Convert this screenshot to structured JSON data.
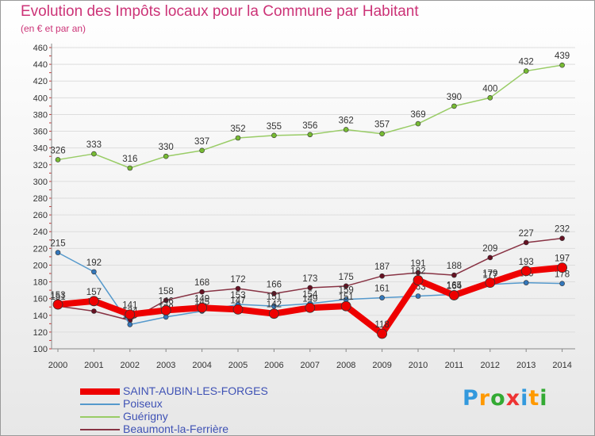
{
  "chart_data": {
    "type": "line",
    "title": "Evolution des Impôts locaux pour la Commune par Habitant",
    "subtitle": "(en € et par an)",
    "xlabel": "",
    "ylabel": "",
    "ylim": [
      100,
      460
    ],
    "ytick_step": 20,
    "categories": [
      "2000",
      "2001",
      "2002",
      "2003",
      "2004",
      "2005",
      "2006",
      "2007",
      "2008",
      "2009",
      "2010",
      "2011",
      "2012",
      "2013",
      "2014"
    ],
    "series": [
      {
        "name": "Guérigny",
        "color": "#99cc66",
        "point_color": "#77bb33",
        "line_width": 1.5,
        "values": [
          326,
          333,
          316,
          330,
          337,
          352,
          355,
          356,
          362,
          357,
          369,
          390,
          400,
          432,
          439
        ],
        "show_labels": true
      },
      {
        "name": "Beaumont-la-Ferrière",
        "color": "#883344",
        "point_color": "#661122",
        "line_width": 1.5,
        "values": [
          151,
          145,
          134,
          158,
          168,
          172,
          166,
          173,
          175,
          187,
          191,
          188,
          209,
          227,
          232
        ],
        "show_labels": true
      },
      {
        "name": "Poiseux",
        "color": "#5599cc",
        "point_color": "#3377bb",
        "line_width": 1.5,
        "values": [
          215,
          192,
          129,
          138,
          145,
          153,
          151,
          154,
          159,
          161,
          163,
          165,
          177,
          179,
          178
        ],
        "show_labels": true
      },
      {
        "name": "SAINT-AUBIN-LES-FORGES",
        "color": "#ee0000",
        "point_color": "#ee0000",
        "line_width": 8,
        "values": [
          153,
          157,
          141,
          146,
          149,
          147,
          142,
          149,
          151,
          118,
          182,
          164,
          179,
          193,
          197
        ],
        "show_labels": true
      }
    ],
    "legend": [
      {
        "name": "SAINT-AUBIN-LES-FORGES",
        "color": "#ee0000",
        "thickness": 8
      },
      {
        "name": "Poiseux",
        "color": "#5599cc",
        "thickness": 2
      },
      {
        "name": "Guérigny",
        "color": "#99cc66",
        "thickness": 2
      },
      {
        "name": "Beaumont-la-Ferrière",
        "color": "#883344",
        "thickness": 2
      }
    ]
  },
  "logo": {
    "letters": [
      "P",
      "r",
      "o",
      "x",
      "i",
      "t",
      "i"
    ],
    "colors": [
      "#3399dd",
      "#ff9900",
      "#33aa33",
      "#ee3333",
      "#3399dd",
      "#ff9900",
      "#33aa33"
    ]
  }
}
